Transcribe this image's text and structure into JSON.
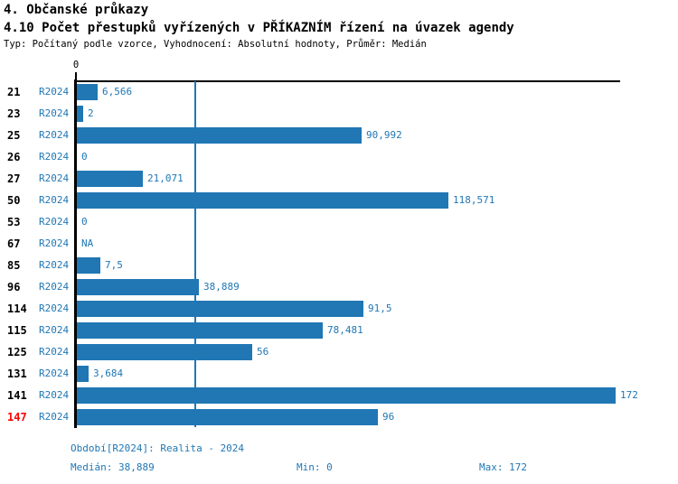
{
  "header": {
    "title": "4. Občanské průkazy",
    "subtitle": "4.10 Počet přestupků vyřízených v PŘÍKAZNÍM řízení na úvazek agendy",
    "meta": "Typ: Počítaný podle vzorce, Vyhodnocení: Absolutní hodnoty, Průměr: Medián"
  },
  "chart_data": {
    "type": "bar",
    "orientation": "horizontal",
    "title": "4.10 Počet přestupků vyřízených v PŘÍKAZNÍM řízení na úvazek agendy",
    "xlabel": "",
    "ylabel": "",
    "xlim": [
      0,
      172
    ],
    "origin_tick_label": "0",
    "median_value": 38.889,
    "series_name": "R2024",
    "grid": false,
    "legend_position": "none",
    "rows": [
      {
        "org": "21",
        "period": "R2024",
        "value": 6.566,
        "value_label": "6,566",
        "highlight": false
      },
      {
        "org": "23",
        "period": "R2024",
        "value": 2,
        "value_label": "2",
        "highlight": false
      },
      {
        "org": "25",
        "period": "R2024",
        "value": 90.992,
        "value_label": "90,992",
        "highlight": false
      },
      {
        "org": "26",
        "period": "R2024",
        "value": 0,
        "value_label": "0",
        "highlight": false
      },
      {
        "org": "27",
        "period": "R2024",
        "value": 21.071,
        "value_label": "21,071",
        "highlight": false
      },
      {
        "org": "50",
        "period": "R2024",
        "value": 118.571,
        "value_label": "118,571",
        "highlight": false
      },
      {
        "org": "53",
        "period": "R2024",
        "value": 0,
        "value_label": "0",
        "highlight": false
      },
      {
        "org": "67",
        "period": "R2024",
        "value": null,
        "value_label": "NA",
        "highlight": false
      },
      {
        "org": "85",
        "period": "R2024",
        "value": 7.5,
        "value_label": "7,5",
        "highlight": false
      },
      {
        "org": "96",
        "period": "R2024",
        "value": 38.889,
        "value_label": "38,889",
        "highlight": false
      },
      {
        "org": "114",
        "period": "R2024",
        "value": 91.5,
        "value_label": "91,5",
        "highlight": false
      },
      {
        "org": "115",
        "period": "R2024",
        "value": 78.481,
        "value_label": "78,481",
        "highlight": false
      },
      {
        "org": "125",
        "period": "R2024",
        "value": 56,
        "value_label": "56",
        "highlight": false
      },
      {
        "org": "131",
        "period": "R2024",
        "value": 3.684,
        "value_label": "3,684",
        "highlight": false
      },
      {
        "org": "141",
        "period": "R2024",
        "value": 172,
        "value_label": "172",
        "highlight": false
      },
      {
        "org": "147",
        "period": "R2024",
        "value": 96,
        "value_label": "96",
        "highlight": true
      }
    ]
  },
  "colors": {
    "bar": "#2077B4",
    "blue_text": "#1F77B4",
    "median_line": "#2077B4",
    "highlight_red": "#FF0000",
    "axis_black": "#000000"
  },
  "footer": {
    "period_line": "Období[R2024]: Realita - 2024",
    "median_label": "Medián: 38,889",
    "min_label": "Min: 0",
    "max_label": "Max: 172"
  }
}
